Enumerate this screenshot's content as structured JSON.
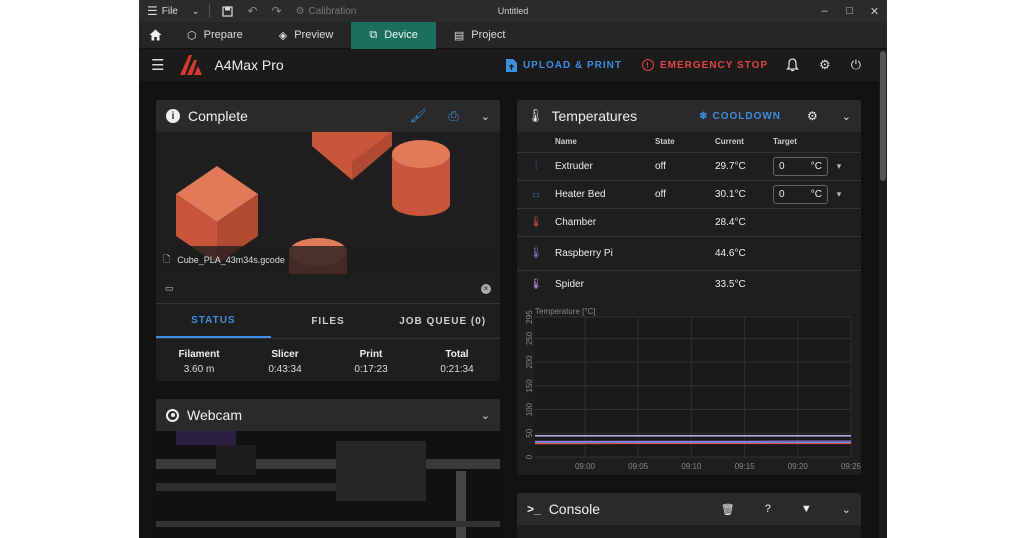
{
  "titlebar": {
    "file_label": "File",
    "calibration_label": "Calibration",
    "window_title": "Untitled"
  },
  "tabs": [
    {
      "label": "Prepare"
    },
    {
      "label": "Preview"
    },
    {
      "label": "Device"
    },
    {
      "label": "Project"
    }
  ],
  "header": {
    "printer_name": "A4Max Pro",
    "upload_label": "UPLOAD & PRINT",
    "emergency_label": "EMERGENCY STOP"
  },
  "status_card": {
    "title": "Complete",
    "filename": "Cube_PLA_43m34s.gcode",
    "tabs": [
      "STATUS",
      "FILES",
      "JOB QUEUE (0)"
    ],
    "stats": [
      {
        "label": "Filament",
        "value": "3.60 m"
      },
      {
        "label": "Slicer",
        "value": "0:43:34"
      },
      {
        "label": "Print",
        "value": "0:17:23"
      },
      {
        "label": "Total",
        "value": "0:21:34"
      }
    ]
  },
  "webcam_card": {
    "title": "Webcam"
  },
  "temps_card": {
    "title": "Temperatures",
    "cooldown_label": "COOLDOWN",
    "columns": [
      "Name",
      "State",
      "Current",
      "Target"
    ],
    "rows": [
      {
        "name": "Extruder",
        "state": "off",
        "current": "29.7°C",
        "target": "0",
        "unit": "°C"
      },
      {
        "name": "Heater Bed",
        "state": "off",
        "current": "30.1°C",
        "target": "0",
        "unit": "°C"
      },
      {
        "name": "Chamber",
        "state": "",
        "current": "28.4°C"
      },
      {
        "name": "Raspberry Pi",
        "state": "",
        "current": "44.6°C"
      },
      {
        "name": "Spider",
        "state": "",
        "current": "33.5°C"
      }
    ]
  },
  "chart_data": {
    "type": "line",
    "title": "Temperature [°C]",
    "xlabel": "",
    "ylabel": "",
    "x": [
      "09:00",
      "09:05",
      "09:10",
      "09:15",
      "09:20",
      "09:25"
    ],
    "yticks": [
      0,
      50,
      100,
      150,
      200,
      250,
      295
    ],
    "ylim": [
      0,
      295
    ],
    "grid": true,
    "series": [
      {
        "color": "#8f7fe0",
        "values": [
          33,
          33,
          33,
          33,
          33.5,
          33.5
        ]
      },
      {
        "color": "#3a7bd5",
        "values": [
          30,
          30,
          30,
          30,
          30.1,
          30.1
        ]
      },
      {
        "color": "#6fa8ff",
        "values": [
          29.5,
          29.6,
          29.6,
          29.7,
          29.7,
          29.7
        ]
      },
      {
        "color": "#d9534f",
        "values": [
          28.3,
          28.4,
          28.4,
          28.4,
          28.4,
          28.4
        ]
      },
      {
        "color": "#c9c9ff",
        "values": [
          44.6,
          44.6,
          44.6,
          44.6,
          44.6,
          44.6
        ]
      }
    ]
  },
  "console_card": {
    "title": "Console"
  },
  "colors": {
    "accent_blue": "#3b8fe0",
    "emergency_red": "#e04545",
    "active_tab": "#1c6e5d",
    "brand_red": "#d63a2f",
    "model_orange": "#c8563b"
  }
}
